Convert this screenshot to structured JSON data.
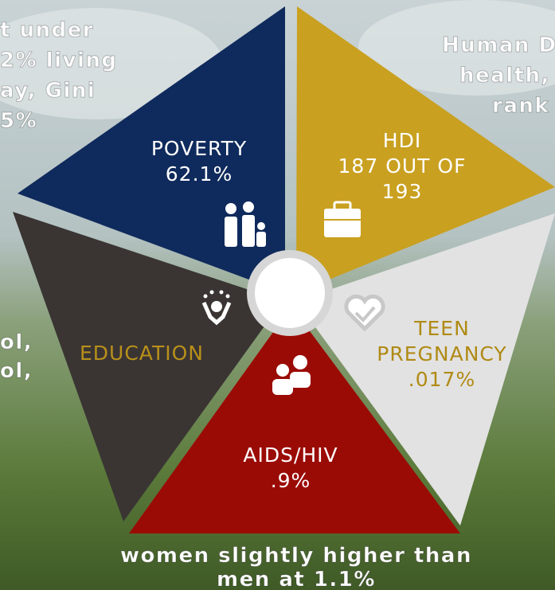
{
  "segments": [
    {
      "lines": [
        "POVERTY",
        "62.1%"
      ]
    },
    {
      "lines": [
        "HDI",
        "187 OUT OF",
        "193"
      ]
    },
    {
      "lines": [
        "TEEN",
        "PREGNANCY",
        ".017%"
      ]
    },
    {
      "lines": [
        "AIDS/HIV",
        ".9%"
      ]
    },
    {
      "lines": [
        "EDUCATION"
      ]
    }
  ],
  "left_top_text": [
    "t under",
    "2% living",
    "ay, Gini",
    "5%"
  ],
  "right_top_text": [
    "Human D",
    "health,",
    "rank"
  ],
  "left_middle_text": [
    "ol,",
    "ol,"
  ],
  "bottom_text": [
    "women slightly higher than",
    "men at 1.1%"
  ]
}
